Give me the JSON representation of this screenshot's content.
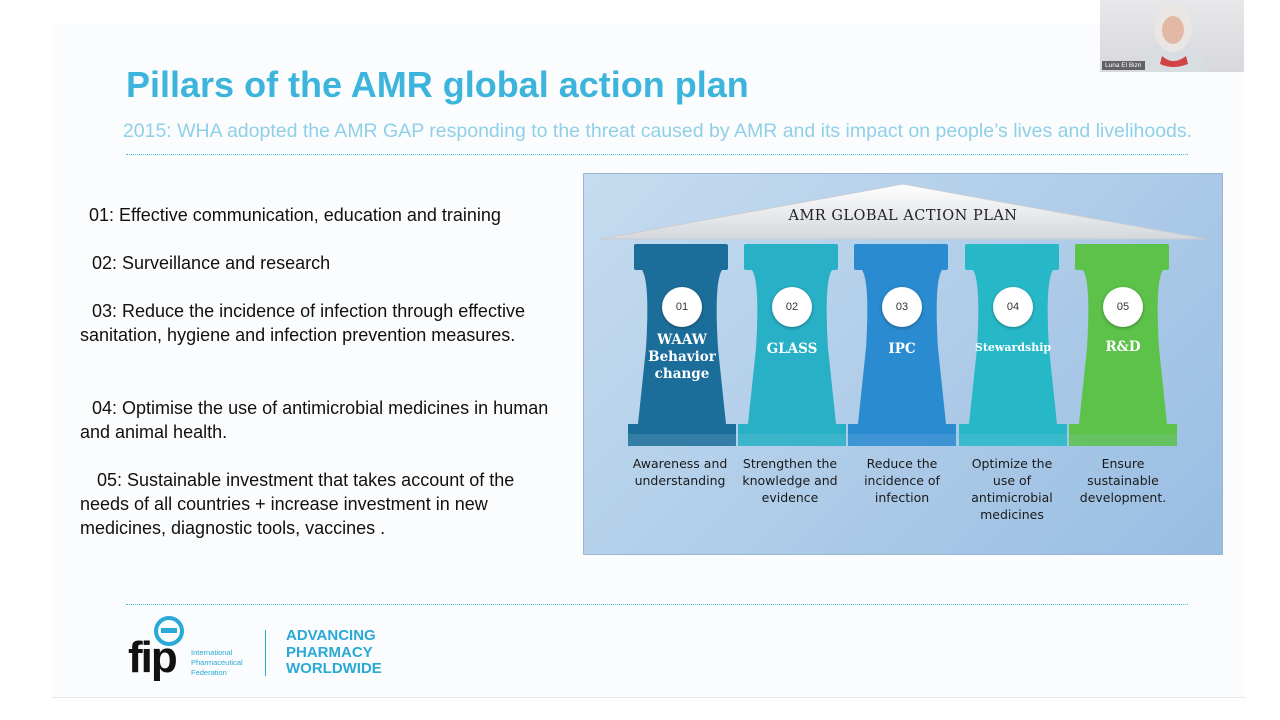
{
  "slide": {
    "title": "Pillars of the AMR global action plan",
    "subtitle": "2015: WHA adopted the AMR GAP responding to the threat caused by AMR and its impact on people’s lives and livelihoods.",
    "items": [
      "01: Effective communication, education and training",
      "02: Surveillance and research",
      "03: Reduce the incidence of infection through effective sanitation, hygiene and infection prevention measures.",
      "04: Optimise the use of antimicrobial medicines in human and animal health.",
      "05: Sustainable investment that takes account of the needs of all countries + increase investment in new medicines, diagnostic tools, vaccines ."
    ]
  },
  "diagram": {
    "roof_label": "AMR GLOBAL ACTION PLAN",
    "pillars": [
      {
        "num": "01",
        "name": "WAAW Behavior change",
        "desc": "Awareness and understanding",
        "color": "#1c6e9a"
      },
      {
        "num": "02",
        "name": "GLASS",
        "desc": "Strengthen the knowledge and evidence",
        "color": "#27b0c6"
      },
      {
        "num": "03",
        "name": "IPC",
        "desc": "Reduce the incidence of infection",
        "color": "#2a8bd0"
      },
      {
        "num": "04",
        "name": "Stewardship",
        "desc": "Optimize the use of antimicrobial medicines",
        "color": "#27b8c8"
      },
      {
        "num": "05",
        "name": "R&D",
        "desc": "Ensure sustainable development.",
        "color": "#5cc24a"
      }
    ]
  },
  "logo": {
    "word": "fip",
    "small_lines": [
      "International",
      "Pharmaceutical",
      "Federation"
    ],
    "tagline_lines": [
      "ADVANCING",
      "PHARMACY",
      "WORLDWIDE"
    ]
  },
  "webcam": {
    "name": "Luna El Bizri"
  }
}
